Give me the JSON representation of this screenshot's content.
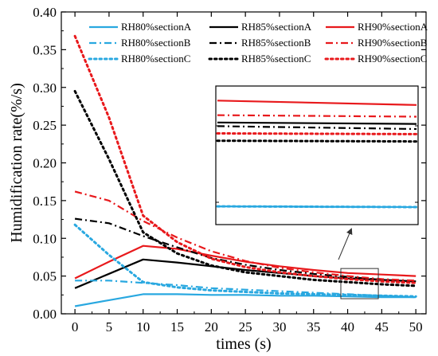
{
  "chart_data": {
    "type": "line",
    "xlabel": "times (s)",
    "ylabel": "Humidification rate(%/s)",
    "xlim": [
      -2,
      51.5
    ],
    "ylim": [
      0,
      0.4
    ],
    "x": [
      0,
      5,
      10,
      15,
      20,
      25,
      30,
      35,
      40,
      45,
      50
    ],
    "x_ticks": [
      0,
      5,
      10,
      15,
      20,
      25,
      30,
      35,
      40,
      45,
      50
    ],
    "y_ticks": [
      0.0,
      0.05,
      0.1,
      0.15,
      0.2,
      0.25,
      0.3,
      0.35,
      0.4
    ],
    "y_tick_labels": [
      "0.00",
      "0.05",
      "0.10",
      "0.15",
      "0.20",
      "0.25",
      "0.30",
      "0.35",
      "0.40"
    ],
    "legend_position": "top-right, 3 columns",
    "series": [
      {
        "name": "RH80%sectionA",
        "color": "#29a8e0",
        "style": "solid",
        "values": [
          0.01,
          0.018,
          0.026,
          0.026,
          0.025,
          0.025,
          0.024,
          0.024,
          0.023,
          0.022,
          0.022
        ]
      },
      {
        "name": "RH85%sectionA",
        "color": "#000000",
        "style": "solid",
        "values": [
          0.034,
          0.053,
          0.072,
          0.068,
          0.063,
          0.058,
          0.054,
          0.05,
          0.047,
          0.045,
          0.043
        ]
      },
      {
        "name": "RH90%sectionA",
        "color": "#e8191c",
        "style": "solid",
        "values": [
          0.047,
          0.069,
          0.09,
          0.086,
          0.077,
          0.069,
          0.063,
          0.058,
          0.054,
          0.052,
          0.05
        ]
      },
      {
        "name": "RH80%sectionB",
        "color": "#29a8e0",
        "style": "dashdot",
        "values": [
          0.044,
          0.044,
          0.041,
          0.038,
          0.034,
          0.032,
          0.03,
          0.028,
          0.026,
          0.024,
          0.022
        ]
      },
      {
        "name": "RH85%sectionB",
        "color": "#000000",
        "style": "dashdot",
        "values": [
          0.126,
          0.12,
          0.103,
          0.088,
          0.074,
          0.065,
          0.058,
          0.053,
          0.049,
          0.045,
          0.043
        ]
      },
      {
        "name": "RH90%sectionB",
        "color": "#e8191c",
        "style": "dashdot",
        "values": [
          0.162,
          0.15,
          0.123,
          0.101,
          0.083,
          0.07,
          0.061,
          0.055,
          0.05,
          0.046,
          0.044
        ]
      },
      {
        "name": "RH80%sectionC",
        "color": "#29a8e0",
        "style": "dot",
        "values": [
          0.118,
          0.078,
          0.042,
          0.035,
          0.031,
          0.029,
          0.027,
          0.026,
          0.025,
          0.024,
          0.023
        ]
      },
      {
        "name": "RH85%sectionC",
        "color": "#000000",
        "style": "dot",
        "values": [
          0.295,
          0.205,
          0.108,
          0.08,
          0.064,
          0.055,
          0.05,
          0.045,
          0.042,
          0.039,
          0.037
        ]
      },
      {
        "name": "RH90%sectionC",
        "color": "#e8191c",
        "style": "dot",
        "values": [
          0.368,
          0.26,
          0.13,
          0.095,
          0.073,
          0.062,
          0.055,
          0.05,
          0.046,
          0.043,
          0.041
        ]
      }
    ],
    "inset": {
      "zoom_region_x": [
        39,
        44.5
      ],
      "zoom_region_y": [
        0.02,
        0.06
      ],
      "note_values_at_zoom": {
        "RH90%sectionA": 0.052,
        "RH90%sectionB": 0.048,
        "RH85%sectionA": 0.046,
        "RH85%sectionB": 0.045,
        "RH90%sectionC": 0.043,
        "RH85%sectionC": 0.041,
        "RH80%sectionA": 0.023,
        "RH80%sectionB": 0.023,
        "RH80%sectionC": 0.023
      }
    }
  }
}
